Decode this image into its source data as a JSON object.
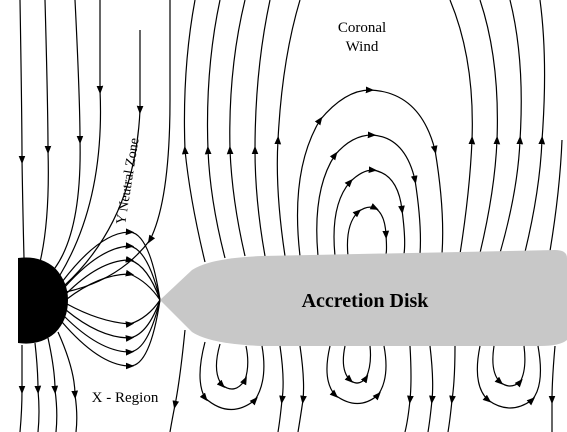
{
  "labels": {
    "coronal": "Coronal",
    "wind": "Wind",
    "neutral_zone": "Y Neutral Zone",
    "disk": "Accretion Disk",
    "x_region": "X - Region"
  }
}
